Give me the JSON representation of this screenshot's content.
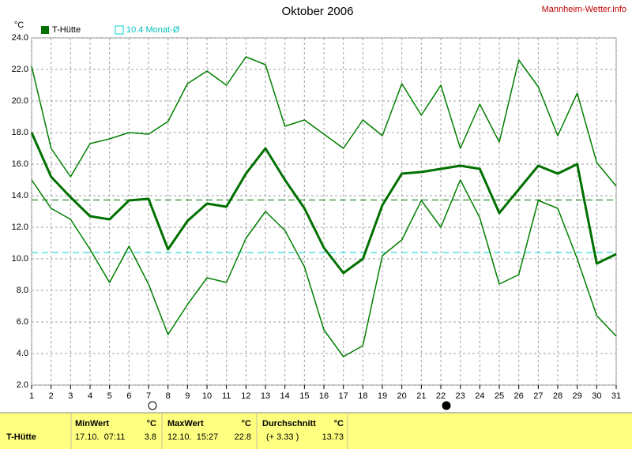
{
  "chart_data": {
    "type": "line",
    "title": "Oktober 2006",
    "site": "Mannheim-Wetter.info",
    "y_unit": "°C",
    "x": [
      1,
      2,
      3,
      4,
      5,
      6,
      7,
      8,
      9,
      10,
      11,
      12,
      13,
      14,
      15,
      16,
      17,
      18,
      19,
      20,
      21,
      22,
      23,
      24,
      25,
      26,
      27,
      28,
      29,
      30,
      31
    ],
    "xlim": [
      1,
      31
    ],
    "ylim": [
      2,
      24
    ],
    "yticks": [
      {
        "value": 2,
        "label": "2.0"
      },
      {
        "value": 4,
        "label": "4.0"
      },
      {
        "value": 6,
        "label": "6.0"
      },
      {
        "value": 8,
        "label": "8.0"
      },
      {
        "value": 10,
        "label": "10.0"
      },
      {
        "value": 12,
        "label": "12.0"
      },
      {
        "value": 14,
        "label": "14.0"
      },
      {
        "value": 16,
        "label": "16.0"
      },
      {
        "value": 18,
        "label": "18.0"
      },
      {
        "value": 20,
        "label": "20.0"
      },
      {
        "value": 22,
        "label": "22.0"
      },
      {
        "value": 24,
        "label": "24.0"
      }
    ],
    "grid": true,
    "series": [
      {
        "color": "#008000",
        "width": 1.5,
        "values": [
          22.2,
          17.0,
          15.2,
          17.3,
          17.6,
          18.0,
          17.9,
          18.7,
          21.1,
          21.9,
          21.0,
          22.8,
          22.3,
          18.4,
          18.8,
          17.9,
          17.0,
          18.8,
          17.8,
          21.1,
          19.1,
          21.0,
          17.0,
          19.8,
          17.4,
          22.6,
          20.9,
          17.8,
          20.5,
          16.1,
          14.6
        ]
      },
      {
        "name": "T-Hütte",
        "color": "#007000",
        "width": 3,
        "values": [
          18.0,
          15.2,
          13.9,
          12.7,
          12.5,
          13.7,
          13.8,
          10.6,
          12.4,
          13.5,
          13.3,
          15.4,
          17.0,
          15.0,
          13.2,
          10.7,
          9.1,
          10.0,
          13.4,
          15.4,
          15.5,
          15.7,
          15.9,
          15.7,
          12.9,
          14.4,
          15.9,
          15.4,
          16.0,
          9.7,
          10.3
        ]
      },
      {
        "color": "#008000",
        "width": 1.5,
        "values": [
          15.0,
          13.2,
          12.5,
          10.6,
          8.5,
          10.8,
          8.4,
          5.2,
          7.1,
          8.8,
          8.5,
          11.3,
          13.0,
          11.8,
          9.5,
          5.5,
          3.8,
          4.5,
          10.2,
          11.2,
          13.7,
          12.0,
          15.0,
          12.6,
          8.4,
          9.0,
          13.7,
          13.2,
          10.0,
          6.4,
          5.1
        ]
      }
    ],
    "monthly_avg": {
      "value": 10.4,
      "label": "10.4 Monat-Ø",
      "color": "#00d0d0"
    }
  },
  "table": {
    "header": [
      "MinWert",
      "°C",
      "MaxWert",
      "°C",
      "Durchschnitt",
      "°C"
    ],
    "rows": [
      [
        "T-Hütte",
        "17.10.  07:11",
        "3.8",
        "12.10.  15:27",
        "22.8",
        "(+ 3.33 )",
        "13.73"
      ]
    ]
  }
}
